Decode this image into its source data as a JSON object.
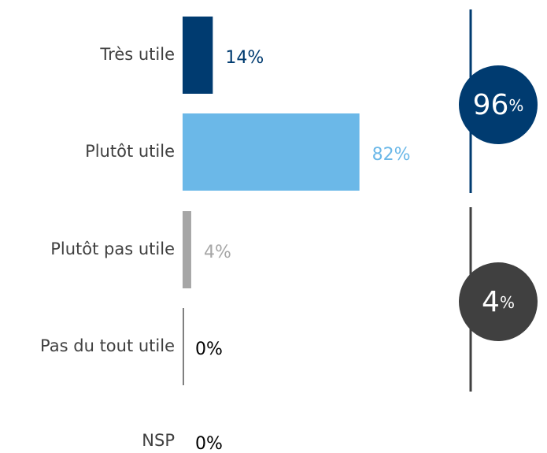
{
  "chart_data": {
    "type": "hbar",
    "categories": [
      "Très utile",
      "Plutôt utile",
      "Plutôt pas utile",
      "Pas du tout utile",
      "NSP"
    ],
    "values": [
      14,
      82,
      4,
      0,
      0
    ],
    "value_labels": [
      "14%",
      "82%",
      "4%",
      "0%",
      "0%"
    ],
    "colors": [
      "#003b70",
      "#6bb8e8",
      "#a6a6a6",
      "#000000",
      null
    ],
    "xlim": [
      0,
      100
    ],
    "summaries": [
      {
        "value": 96,
        "unit": "%",
        "color": "#003b70"
      },
      {
        "value": 4,
        "unit": "%",
        "color": "#404040"
      }
    ]
  }
}
